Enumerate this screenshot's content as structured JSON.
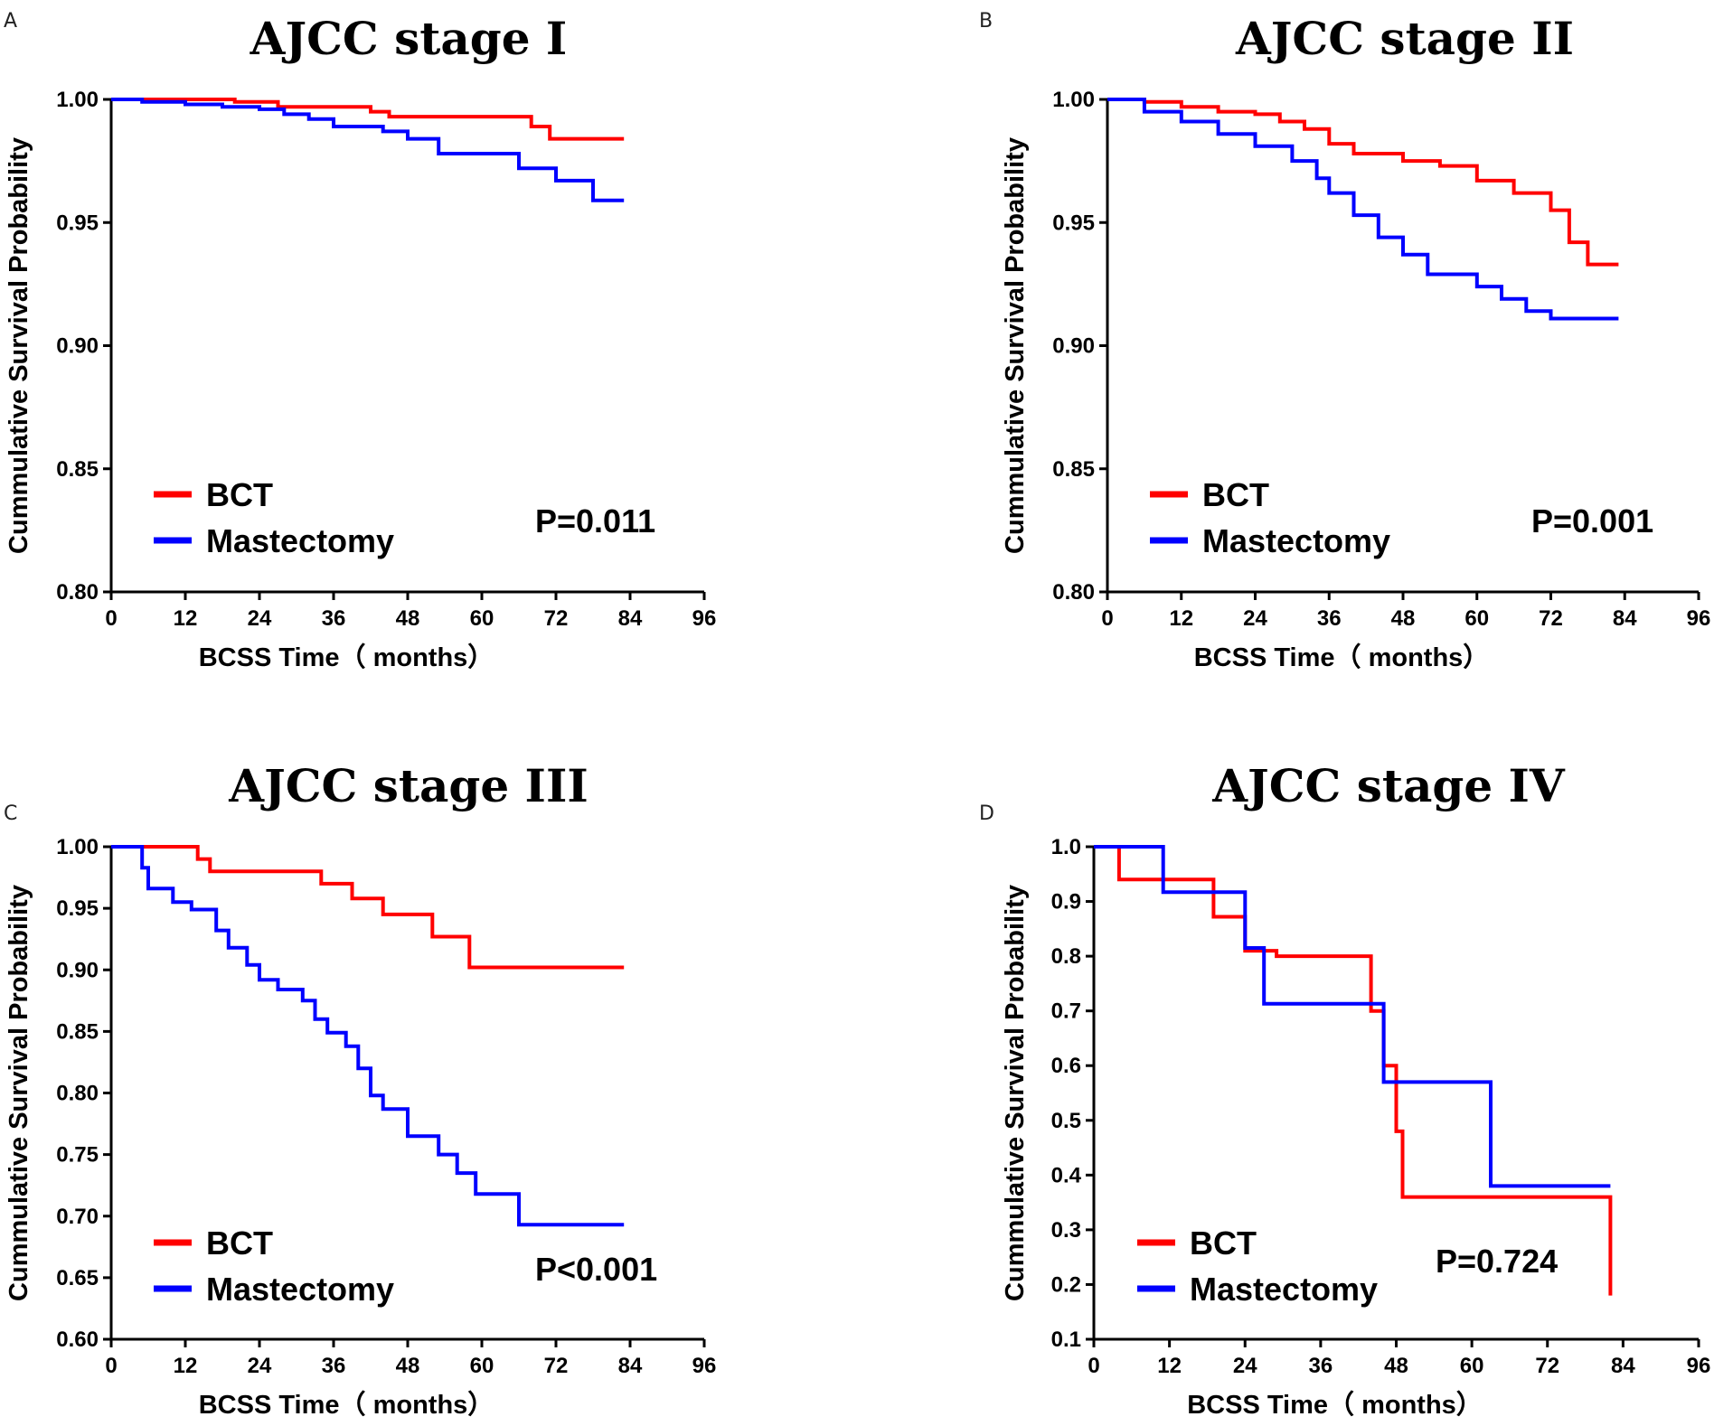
{
  "figure": {
    "colors": {
      "bct": "#ff0000",
      "mastectomy": "#0000ff",
      "axis": "#000000"
    }
  },
  "chart_data": [
    {
      "panel": "A",
      "type": "line",
      "title": "AJCC stage I",
      "xlabel": "BCSS Time（ months）",
      "ylabel": "Cummulative Survival Probability",
      "xlim": [
        0,
        96
      ],
      "ylim": [
        0.8,
        1.0
      ],
      "xticks": [
        0,
        12,
        24,
        36,
        48,
        60,
        72,
        84,
        96
      ],
      "yticks": [
        "0.80",
        "0.85",
        "0.90",
        "0.95",
        "1.00"
      ],
      "legend": [
        "BCT",
        "Mastectomy"
      ],
      "pvalue": "P=0.011",
      "series": [
        {
          "name": "BCT",
          "color": "#ff0000",
          "x": [
            0,
            20,
            27,
            42,
            45,
            68,
            71,
            83
          ],
          "y": [
            1.0,
            0.999,
            0.997,
            0.995,
            0.993,
            0.989,
            0.984,
            0.984
          ]
        },
        {
          "name": "Mastectomy",
          "color": "#0000ff",
          "x": [
            0,
            5,
            12,
            18,
            24,
            28,
            32,
            36,
            44,
            48,
            53,
            66,
            72,
            78,
            83
          ],
          "y": [
            1.0,
            0.999,
            0.998,
            0.997,
            0.996,
            0.994,
            0.992,
            0.989,
            0.987,
            0.984,
            0.978,
            0.972,
            0.967,
            0.959,
            0.959
          ]
        }
      ]
    },
    {
      "panel": "B",
      "type": "line",
      "title": "AJCC stage II",
      "xlabel": "BCSS Time（ months）",
      "ylabel": "Cummulative Survival Probability",
      "xlim": [
        0,
        96
      ],
      "ylim": [
        0.8,
        1.0
      ],
      "xticks": [
        0,
        12,
        24,
        36,
        48,
        60,
        72,
        84,
        96
      ],
      "yticks": [
        "0.80",
        "0.85",
        "0.90",
        "0.95",
        "1.00"
      ],
      "legend": [
        "BCT",
        "Mastectomy"
      ],
      "pvalue": "P=0.001",
      "series": [
        {
          "name": "BCT",
          "color": "#ff0000",
          "x": [
            0,
            6,
            12,
            18,
            24,
            28,
            32,
            36,
            40,
            48,
            54,
            60,
            66,
            72,
            75,
            78,
            83
          ],
          "y": [
            1.0,
            0.999,
            0.997,
            0.995,
            0.994,
            0.991,
            0.988,
            0.982,
            0.978,
            0.975,
            0.973,
            0.967,
            0.962,
            0.955,
            0.942,
            0.933,
            0.933
          ]
        },
        {
          "name": "Mastectomy",
          "color": "#0000ff",
          "x": [
            0,
            6,
            12,
            18,
            24,
            30,
            34,
            36,
            40,
            44,
            48,
            52,
            60,
            64,
            68,
            72,
            83
          ],
          "y": [
            1.0,
            0.995,
            0.991,
            0.986,
            0.981,
            0.975,
            0.968,
            0.962,
            0.953,
            0.944,
            0.937,
            0.929,
            0.924,
            0.919,
            0.914,
            0.911,
            0.911
          ]
        }
      ]
    },
    {
      "panel": "C",
      "type": "line",
      "title": "AJCC stage III",
      "xlabel": "BCSS Time（ months）",
      "ylabel": "Cummulative Survival Probability",
      "xlim": [
        0,
        96
      ],
      "ylim": [
        0.6,
        1.0
      ],
      "xticks": [
        0,
        12,
        24,
        36,
        48,
        60,
        72,
        84,
        96
      ],
      "yticks": [
        "0.60",
        "0.65",
        "0.70",
        "0.75",
        "0.80",
        "0.85",
        "0.90",
        "0.95",
        "1.00"
      ],
      "legend": [
        "BCT",
        "Mastectomy"
      ],
      "pvalue": "P<0.001",
      "series": [
        {
          "name": "BCT",
          "color": "#ff0000",
          "x": [
            0,
            14,
            16,
            34,
            39,
            44,
            52,
            58,
            83
          ],
          "y": [
            1.0,
            0.99,
            0.98,
            0.97,
            0.958,
            0.945,
            0.927,
            0.902,
            0.902
          ]
        },
        {
          "name": "Mastectomy",
          "color": "#0000ff",
          "x": [
            0,
            5,
            6,
            10,
            13,
            17,
            19,
            22,
            24,
            27,
            31,
            33,
            35,
            38,
            40,
            42,
            44,
            48,
            53,
            56,
            59,
            66,
            83
          ],
          "y": [
            1.0,
            0.983,
            0.966,
            0.955,
            0.949,
            0.932,
            0.918,
            0.904,
            0.892,
            0.884,
            0.875,
            0.86,
            0.849,
            0.838,
            0.82,
            0.798,
            0.787,
            0.765,
            0.75,
            0.735,
            0.718,
            0.693,
            0.693
          ]
        }
      ]
    },
    {
      "panel": "D",
      "type": "line",
      "title": "AJCC stage IV",
      "xlabel": "BCSS Time（ months）",
      "ylabel": "Cummulative Survival Probability",
      "xlim": [
        0,
        96
      ],
      "ylim": [
        0.1,
        1.0
      ],
      "xticks": [
        0,
        12,
        24,
        36,
        48,
        60,
        72,
        84,
        96
      ],
      "yticks": [
        "0.1",
        "0.2",
        "0.3",
        "0.4",
        "0.5",
        "0.6",
        "0.7",
        "0.8",
        "0.9",
        "1.0"
      ],
      "legend": [
        "BCT",
        "Mastectomy"
      ],
      "pvalue": "P=0.724",
      "series": [
        {
          "name": "BCT",
          "color": "#ff0000",
          "x": [
            0,
            4,
            19,
            24,
            29,
            44,
            46,
            48,
            49,
            82,
            82
          ],
          "y": [
            1.0,
            0.94,
            0.872,
            0.81,
            0.8,
            0.7,
            0.6,
            0.48,
            0.36,
            0.36,
            0.18
          ]
        },
        {
          "name": "Mastectomy",
          "color": "#0000ff",
          "x": [
            0,
            11,
            24,
            27,
            46,
            47,
            63,
            82
          ],
          "y": [
            1.0,
            0.917,
            0.815,
            0.713,
            0.57,
            0.57,
            0.38,
            0.38
          ]
        }
      ]
    }
  ]
}
